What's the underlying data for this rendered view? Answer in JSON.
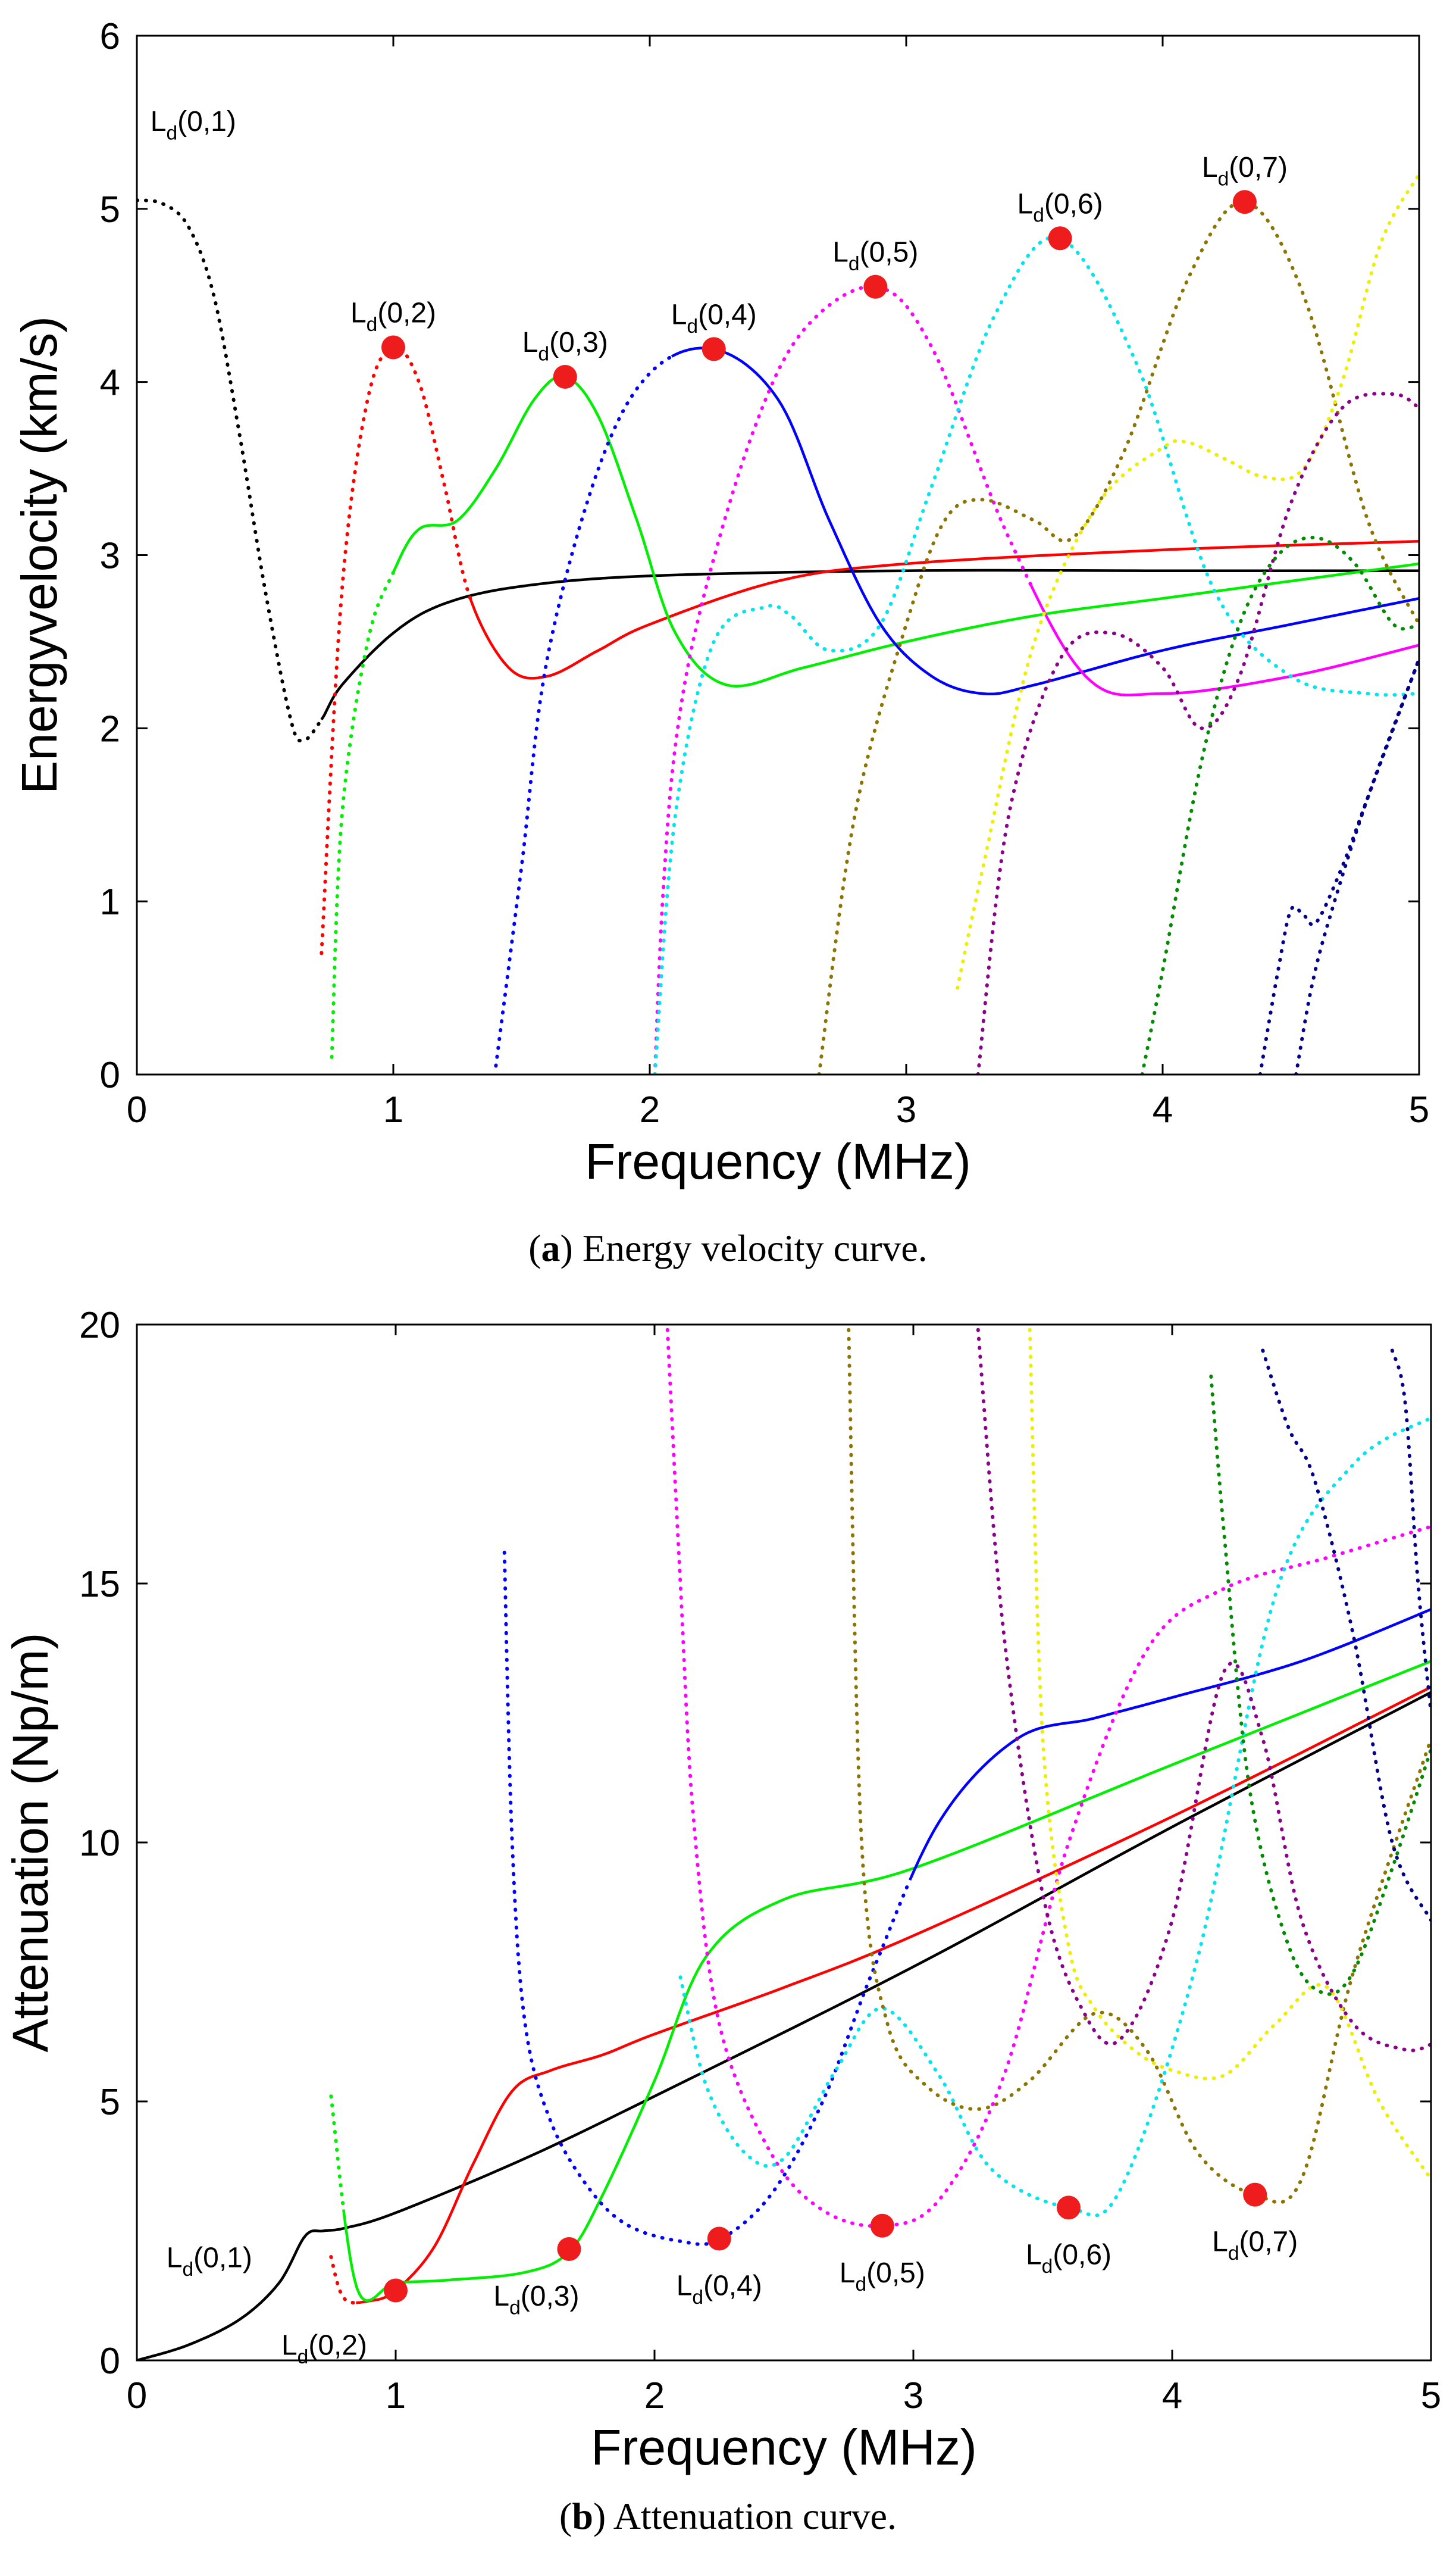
{
  "chart_data": [
    {
      "type": "line",
      "panel": "a",
      "xlabel": "Frequency (MHz)",
      "ylabel": "Energyvelocity (km/s)",
      "xlim": [
        0,
        5
      ],
      "ylim": [
        0,
        6
      ],
      "xticks": [
        "0",
        "1",
        "2",
        "3",
        "4",
        "5"
      ],
      "yticks": [
        "0",
        "1",
        "2",
        "3",
        "4",
        "5",
        "6"
      ],
      "grid": false,
      "series": [
        {
          "name": "black",
          "color": "#000000",
          "dotted_until": 0.72,
          "x": [
            0,
            0.1,
            0.2,
            0.3,
            0.4,
            0.5,
            0.6,
            0.65,
            0.72,
            0.8,
            1.0,
            1.2,
            1.5,
            2.0,
            3.0,
            4.0,
            5.0
          ],
          "y": [
            5.05,
            5.03,
            4.9,
            4.5,
            3.7,
            2.8,
            2.05,
            1.93,
            2.05,
            2.25,
            2.55,
            2.72,
            2.82,
            2.88,
            2.91,
            2.91,
            2.91
          ]
        },
        {
          "name": "red",
          "color": "#ff0000",
          "dotted_until": 1.3,
          "x": [
            0.72,
            0.8,
            0.9,
            1.0,
            1.1,
            1.2,
            1.3,
            1.45,
            1.6,
            1.8,
            2.0,
            2.5,
            3.0,
            4.0,
            5.0
          ],
          "y": [
            0.7,
            2.8,
            3.9,
            4.2,
            4.0,
            3.4,
            2.75,
            2.35,
            2.3,
            2.45,
            2.6,
            2.85,
            2.95,
            3.03,
            3.08
          ]
        },
        {
          "name": "green",
          "color": "#00ee00",
          "dotted_until": 1.0,
          "x": [
            0.76,
            0.8,
            0.9,
            1.0,
            1.1,
            1.25,
            1.4,
            1.55,
            1.67,
            1.8,
            1.95,
            2.1,
            2.3,
            2.6,
            3.0,
            3.5,
            4.0,
            4.5,
            5.0
          ],
          "y": [
            0.1,
            1.5,
            2.5,
            2.9,
            3.15,
            3.2,
            3.5,
            3.9,
            4.03,
            3.8,
            3.2,
            2.55,
            2.25,
            2.35,
            2.5,
            2.65,
            2.75,
            2.85,
            2.95
          ]
        },
        {
          "name": "blue",
          "color": "#0000ff",
          "dotted_until": 2.1,
          "x": [
            1.4,
            1.5,
            1.6,
            1.8,
            2.0,
            2.25,
            2.5,
            2.7,
            2.9,
            3.1,
            3.3,
            3.5,
            4.0,
            4.5,
            5.0
          ],
          "y": [
            0.05,
            1.2,
            2.4,
            3.5,
            4.05,
            4.19,
            3.9,
            3.2,
            2.6,
            2.3,
            2.2,
            2.25,
            2.45,
            2.6,
            2.75
          ]
        },
        {
          "name": "magenta",
          "color": "#ff00ff",
          "dotted_until": 3.5,
          "x": [
            2.02,
            2.05,
            2.1,
            2.2,
            2.4,
            2.6,
            2.88,
            3.1,
            3.4,
            3.7,
            4.0,
            4.5,
            5.0
          ],
          "y": [
            0.0,
            1.0,
            1.9,
            2.7,
            3.7,
            4.3,
            4.55,
            4.2,
            3.1,
            2.3,
            2.2,
            2.3,
            2.48
          ]
        },
        {
          "name": "cyan",
          "color": "#00e5ee",
          "dotted_until": 5.0,
          "x": [
            2.02,
            2.1,
            2.25,
            2.45,
            2.55,
            2.7,
            2.9,
            3.1,
            3.35,
            3.6,
            3.9,
            4.2,
            4.5,
            4.8,
            5.0
          ],
          "y": [
            0.0,
            1.5,
            2.5,
            2.7,
            2.65,
            2.45,
            2.6,
            3.4,
            4.4,
            4.83,
            4.1,
            2.8,
            2.3,
            2.2,
            2.2
          ]
        },
        {
          "name": "olive",
          "color": "#8b7500",
          "dotted_until": 5.0,
          "x": [
            2.66,
            2.8,
            3.0,
            3.15,
            3.3,
            3.5,
            3.65,
            3.85,
            4.1,
            4.32,
            4.55,
            4.8,
            5.0
          ],
          "y": [
            0.0,
            1.5,
            2.6,
            3.2,
            3.32,
            3.2,
            3.1,
            3.6,
            4.6,
            5.04,
            4.5,
            3.2,
            2.6
          ]
        },
        {
          "name": "yellow",
          "color": "#eeee00",
          "dotted_until": 5.0,
          "x": [
            3.2,
            3.3,
            3.5,
            3.75,
            4.0,
            4.1,
            4.25,
            4.4,
            4.55,
            4.7,
            4.85,
            5.0
          ],
          "y": [
            0.5,
            1.2,
            2.5,
            3.3,
            3.62,
            3.65,
            3.55,
            3.45,
            3.5,
            4.0,
            4.8,
            5.2
          ]
        },
        {
          "name": "purple",
          "color": "#8b008b",
          "dotted_until": 5.0,
          "x": [
            3.28,
            3.4,
            3.6,
            3.8,
            4.0,
            4.15,
            4.3,
            4.5,
            4.7,
            4.9,
            5.0
          ],
          "y": [
            0.0,
            1.5,
            2.4,
            2.55,
            2.35,
            2.0,
            2.3,
            3.3,
            3.85,
            3.93,
            3.85
          ]
        },
        {
          "name": "dark-green",
          "color": "#008b00",
          "dotted_until": 5.0,
          "x": [
            3.92,
            4.0,
            4.15,
            4.3,
            4.45,
            4.6,
            4.75,
            4.9,
            5.0
          ],
          "y": [
            0.0,
            0.6,
            1.8,
            2.6,
            3.0,
            3.1,
            2.95,
            2.6,
            2.6
          ]
        },
        {
          "name": "navy",
          "color": "#00008b",
          "dotted_until": 5.0,
          "x": [
            4.38,
            4.45,
            4.5,
            4.55,
            4.6,
            4.7,
            4.8,
            4.9,
            5.0
          ],
          "y": [
            0.0,
            0.6,
            0.95,
            0.92,
            0.88,
            1.2,
            1.6,
            2.0,
            2.4
          ]
        },
        {
          "name": "navy-2",
          "color": "#00008b",
          "dotted_until": 5.0,
          "x": [
            4.52,
            4.58,
            4.65,
            4.8,
            5.0
          ],
          "y": [
            0.0,
            0.5,
            0.9,
            1.6,
            2.4
          ]
        }
      ],
      "markers": [
        {
          "label_main": "L",
          "label_sub": "d",
          "label_rest": "(0,2)",
          "x": 1.0,
          "y": 4.2
        },
        {
          "label_main": "L",
          "label_sub": "d",
          "label_rest": "(0,3)",
          "x": 1.67,
          "y": 4.03
        },
        {
          "label_main": "L",
          "label_sub": "d",
          "label_rest": "(0,4)",
          "x": 2.25,
          "y": 4.19
        },
        {
          "label_main": "L",
          "label_sub": "d",
          "label_rest": "(0,5)",
          "x": 2.88,
          "y": 4.55
        },
        {
          "label_main": "L",
          "label_sub": "d",
          "label_rest": "(0,6)",
          "x": 3.6,
          "y": 4.83
        },
        {
          "label_main": "L",
          "label_sub": "d",
          "label_rest": "(0,7)",
          "x": 4.32,
          "y": 5.04
        }
      ],
      "annotations": [
        {
          "label_main": "L",
          "label_sub": "d",
          "label_rest": "(0,1)",
          "x": 0.22,
          "y": 5.45
        }
      ]
    },
    {
      "type": "line",
      "panel": "b",
      "xlabel": "Frequency (MHz)",
      "ylabel": "Attenuation (Np/m)",
      "xlim": [
        0,
        5
      ],
      "ylim": [
        0,
        20
      ],
      "xticks": [
        "0",
        "1",
        "2",
        "3",
        "4",
        "5"
      ],
      "yticks": [
        "0",
        "5",
        "10",
        "15",
        "20"
      ],
      "grid": false,
      "series": [
        {
          "name": "black",
          "color": "#000000",
          "dotted_until": 0.0,
          "x": [
            0,
            0.2,
            0.4,
            0.55,
            0.65,
            0.72,
            0.8,
            1.0,
            1.5,
            2.0,
            3.0,
            4.0,
            5.0
          ],
          "y": [
            0,
            0.3,
            0.8,
            1.5,
            2.4,
            2.5,
            2.55,
            2.85,
            3.9,
            5.1,
            7.6,
            10.3,
            12.9
          ]
        },
        {
          "name": "red",
          "color": "#ff0000",
          "dotted_until": 0.85,
          "x": [
            0.75,
            0.8,
            0.9,
            1.0,
            1.15,
            1.3,
            1.45,
            1.6,
            1.8,
            2.0,
            2.5,
            3.0,
            4.0,
            5.0
          ],
          "y": [
            2.0,
            1.2,
            1.15,
            1.35,
            2.2,
            3.8,
            5.2,
            5.6,
            5.9,
            6.3,
            7.2,
            8.2,
            10.5,
            13.0
          ]
        },
        {
          "name": "green",
          "color": "#00ee00",
          "dotted_until": 0.8,
          "x": [
            0.75,
            0.85,
            1.0,
            1.2,
            1.5,
            1.67,
            1.8,
            2.0,
            2.2,
            2.5,
            3.0,
            4.0,
            5.0
          ],
          "y": [
            5.1,
            1.4,
            1.5,
            1.55,
            1.7,
            2.1,
            3.2,
            5.4,
            7.8,
            8.9,
            9.5,
            11.5,
            13.5
          ]
        },
        {
          "name": "blue",
          "color": "#0000ff",
          "dotted_until": 3.0,
          "x": [
            1.42,
            1.45,
            1.5,
            1.6,
            1.75,
            1.9,
            2.1,
            2.25,
            2.45,
            2.65,
            2.85,
            3.1,
            3.4,
            3.7,
            4.0,
            4.5,
            5.0
          ],
          "y": [
            15.6,
            10.0,
            6.5,
            4.6,
            3.3,
            2.6,
            2.3,
            2.33,
            3.2,
            5.0,
            7.6,
            10.4,
            12.0,
            12.4,
            12.8,
            13.5,
            14.5
          ]
        },
        {
          "name": "magenta",
          "color": "#ff00ff",
          "dotted_until": 5.0,
          "x": [
            2.05,
            2.1,
            2.15,
            2.25,
            2.45,
            2.65,
            2.88,
            3.1,
            3.35,
            3.6,
            3.9,
            4.2,
            4.6,
            5.0
          ],
          "y": [
            19.9,
            15.0,
            10.5,
            6.5,
            4.0,
            2.9,
            2.6,
            3.1,
            5.5,
            10.0,
            13.7,
            14.9,
            15.5,
            16.1
          ]
        },
        {
          "name": "cyan",
          "color": "#00e5ee",
          "dotted_until": 5.0,
          "x": [
            2.1,
            2.2,
            2.35,
            2.5,
            2.7,
            2.88,
            3.1,
            3.3,
            3.6,
            3.8,
            4.1,
            4.4,
            4.7,
            5.0
          ],
          "y": [
            7.4,
            5.3,
            4.0,
            3.9,
            5.6,
            6.8,
            5.5,
            3.7,
            2.95,
            3.3,
            7.8,
            14.8,
            17.3,
            18.2
          ]
        },
        {
          "name": "olive",
          "color": "#8b7500",
          "dotted_until": 5.0,
          "x": [
            2.75,
            2.8,
            2.9,
            3.05,
            3.25,
            3.45,
            3.7,
            3.9,
            4.1,
            4.32,
            4.5,
            4.7,
            5.0
          ],
          "y": [
            19.9,
            10.0,
            6.5,
            5.3,
            4.85,
            5.4,
            6.7,
            6.0,
            4.0,
            3.2,
            3.5,
            7.5,
            12.0
          ]
        },
        {
          "name": "yellow",
          "color": "#eeee00",
          "dotted_until": 5.0,
          "x": [
            3.45,
            3.5,
            3.6,
            3.7,
            3.85,
            4.0,
            4.2,
            4.4,
            4.6,
            4.8,
            5.0
          ],
          "y": [
            19.9,
            12.0,
            8.0,
            6.8,
            6.0,
            5.6,
            5.5,
            6.5,
            7.2,
            5.0,
            3.5
          ]
        },
        {
          "name": "purple",
          "color": "#8b008b",
          "dotted_until": 5.0,
          "x": [
            3.25,
            3.35,
            3.5,
            3.65,
            3.8,
            4.0,
            4.2,
            4.35,
            4.5,
            4.7,
            4.9,
            5.0
          ],
          "y": [
            19.9,
            14.0,
            9.0,
            6.8,
            6.2,
            8.5,
            13.3,
            12.0,
            8.5,
            6.5,
            6.0,
            6.1
          ]
        },
        {
          "name": "dark-green",
          "color": "#008b00",
          "dotted_until": 5.0,
          "x": [
            4.15,
            4.2,
            4.3,
            4.45,
            4.58,
            4.7,
            4.85,
            5.0
          ],
          "y": [
            19.0,
            16.0,
            11.0,
            8.0,
            7.1,
            7.5,
            9.5,
            11.8
          ]
        },
        {
          "name": "navy",
          "color": "#00008b",
          "dotted_until": 5.0,
          "x": [
            4.35,
            4.45,
            4.55,
            4.7,
            4.85,
            5.0
          ],
          "y": [
            19.5,
            18.0,
            17.0,
            14.0,
            10.0,
            8.5
          ]
        },
        {
          "name": "navy-2",
          "color": "#00008b",
          "dotted_until": 5.0,
          "x": [
            4.85,
            4.9,
            4.95,
            5.0
          ],
          "y": [
            19.5,
            18.5,
            15.0,
            12.5
          ]
        }
      ],
      "markers": [
        {
          "label_main": "L",
          "label_sub": "d",
          "label_rest": "(0,2)",
          "x": 1.0,
          "y": 1.35
        },
        {
          "label_main": "L",
          "label_sub": "d",
          "label_rest": "(0,3)",
          "x": 1.67,
          "y": 2.15
        },
        {
          "label_main": "L",
          "label_sub": "d",
          "label_rest": "(0,4)",
          "x": 2.25,
          "y": 2.35
        },
        {
          "label_main": "L",
          "label_sub": "d",
          "label_rest": "(0,5)",
          "x": 2.88,
          "y": 2.6
        },
        {
          "label_main": "L",
          "label_sub": "d",
          "label_rest": "(0,6)",
          "x": 3.6,
          "y": 2.95
        },
        {
          "label_main": "L",
          "label_sub": "d",
          "label_rest": "(0,7)",
          "x": 4.32,
          "y": 3.2
        }
      ],
      "annotations": [
        {
          "label_main": "L",
          "label_sub": "d",
          "label_rest": "(0,1)",
          "x": 0.28,
          "y": 1.8
        }
      ]
    }
  ],
  "captions": {
    "a": {
      "letter": "a",
      "text": " Energy velocity curve."
    },
    "b": {
      "letter": "b",
      "text": " Attenuation curve."
    }
  },
  "colors": {
    "marker": "#ee1c1c",
    "axis": "#000000",
    "background": "#ffffff"
  }
}
